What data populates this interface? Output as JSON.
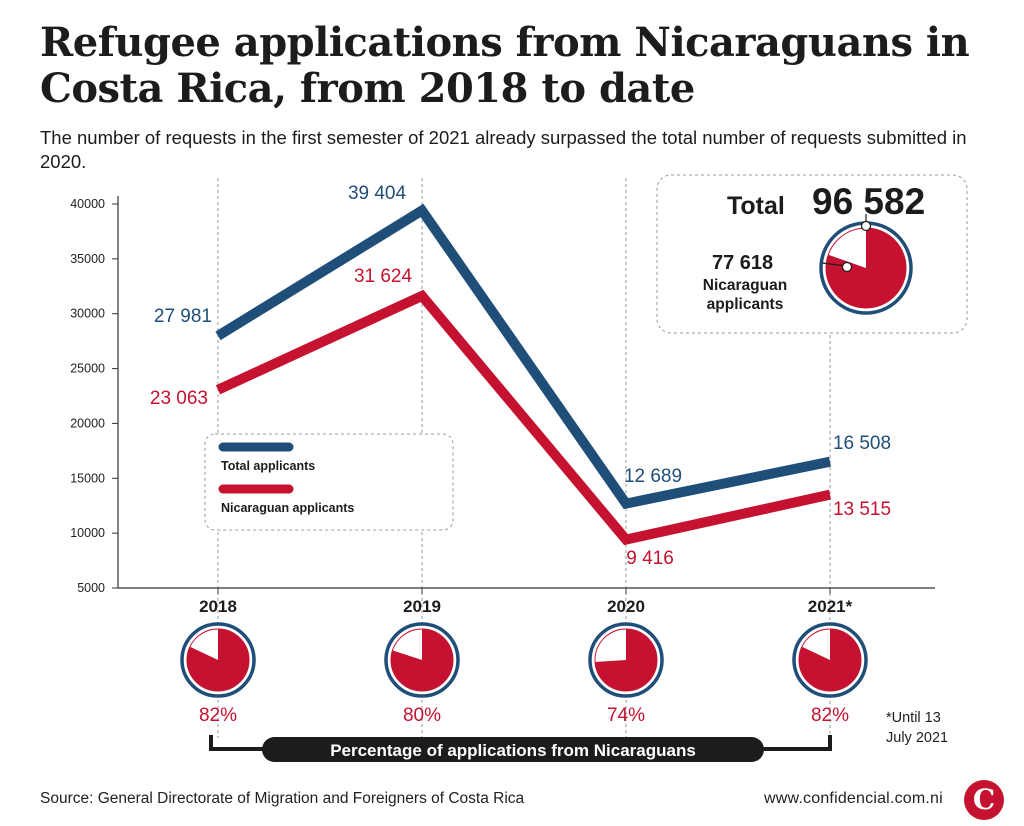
{
  "title": "Refugee applications from Nicaraguans in Costa Rica, from 2018 to date",
  "subtitle": "The number of requests in the first semester of 2021 already surpassed the total number of requests submitted in 2020.",
  "source": "Source: General Directorate of Migration and Foreigners of Costa Rica",
  "website": "www.confidencial.com.ni",
  "logo_letter": "C",
  "footnote": [
    "*Until 13",
    "July 2021"
  ],
  "percentage_banner": "Percentage of applications from Nicaraguans",
  "total_box": {
    "label": "Total",
    "value": "96 582",
    "nicaraguan_value": "77 618",
    "nicaraguan_label_line1": "Nicaraguan",
    "nicaraguan_label_line2": "applicants",
    "nicaraguan_fraction": 0.8036
  },
  "colors": {
    "total": "#1f4e79",
    "nicaraguan": "#c41230",
    "text_dark": "#1c1c1c",
    "grid": "#9a9a9a"
  },
  "chart_data": {
    "type": "line",
    "categories": [
      "2018",
      "2019",
      "2020",
      "2021*"
    ],
    "series": [
      {
        "name": "Total applicants",
        "values": [
          27981,
          39404,
          12689,
          16508
        ],
        "labels": [
          "27 981",
          "39 404",
          "12 689",
          "16 508"
        ]
      },
      {
        "name": "Nicaraguan applicants",
        "values": [
          23063,
          31624,
          9416,
          13515
        ],
        "labels": [
          "23 063",
          "31 624",
          "9 416",
          "13 515"
        ]
      }
    ],
    "percentages": [
      {
        "value": 82,
        "label": "82%"
      },
      {
        "value": 80,
        "label": "80%"
      },
      {
        "value": 74,
        "label": "74%"
      },
      {
        "value": 82,
        "label": "82%"
      }
    ],
    "yticks": [
      40000,
      35000,
      30000,
      25000,
      20000,
      15000,
      10000,
      5000
    ],
    "ylim": [
      5000,
      40000
    ],
    "xlabel": "",
    "ylabel": "",
    "grid": "vertical dashed at categories",
    "legend_position": "center-left"
  }
}
